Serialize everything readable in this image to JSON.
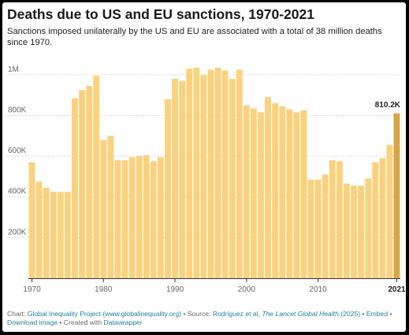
{
  "title": "Deaths due to US and EU sanctions, 1970-2021",
  "subtitle": "Sanctions imposed unilaterally by the US and EU are associated with a total of 38 million deaths since 1970.",
  "chart_data": {
    "type": "bar",
    "x": [
      1970,
      1971,
      1972,
      1973,
      1974,
      1975,
      1976,
      1977,
      1978,
      1979,
      1980,
      1981,
      1982,
      1983,
      1984,
      1985,
      1986,
      1987,
      1988,
      1989,
      1990,
      1991,
      1992,
      1993,
      1994,
      1995,
      1996,
      1997,
      1998,
      1999,
      2000,
      2001,
      2002,
      2003,
      2004,
      2005,
      2006,
      2007,
      2008,
      2009,
      2010,
      2011,
      2012,
      2013,
      2014,
      2015,
      2016,
      2017,
      2018,
      2019,
      2020,
      2021
    ],
    "values": [
      570000,
      475000,
      445000,
      425000,
      425000,
      425000,
      885000,
      925000,
      945000,
      995000,
      680000,
      700000,
      580000,
      580000,
      595000,
      600000,
      605000,
      575000,
      595000,
      880000,
      980000,
      970000,
      1030000,
      1035000,
      1000000,
      1025000,
      1035000,
      1020000,
      980000,
      1025000,
      850000,
      835000,
      815000,
      890000,
      860000,
      845000,
      830000,
      815000,
      825000,
      485000,
      485000,
      510000,
      580000,
      575000,
      465000,
      455000,
      455000,
      490000,
      570000,
      590000,
      655000,
      810200
    ],
    "ylim": [
      0,
      1100000
    ],
    "yticks": [
      200000,
      400000,
      600000,
      800000,
      1000000
    ],
    "ytick_labels": [
      "200K",
      "400K",
      "600K",
      "800K",
      "1M"
    ],
    "xticks": [
      1970,
      1980,
      1990,
      2000,
      2010,
      2021
    ],
    "xtick_labels": [
      "1970",
      "1980",
      "1990",
      "2000",
      "2010",
      "2021"
    ],
    "annotation": {
      "year": 2021,
      "label": "810.2K"
    },
    "grid": true,
    "colors": {
      "bar": "#fad27e",
      "highlight": "#d7a646",
      "grid": "#cfcfcf",
      "axis": "#333333"
    }
  },
  "footer": {
    "chart_prefix": "Chart: ",
    "chart_credit": "Global Inequality Project (www.globalinequality.org)",
    "source_prefix": " • Source: ",
    "source_authors": "Rodriguez et al, ",
    "source_journal": "The Lancet Global Health",
    "source_year": " (2025)",
    "sep1": " • ",
    "embed": "Embed",
    "sep2": " • ",
    "download": "Download image",
    "created_prefix": " • Created with ",
    "created_tool": "Datawrapper"
  }
}
